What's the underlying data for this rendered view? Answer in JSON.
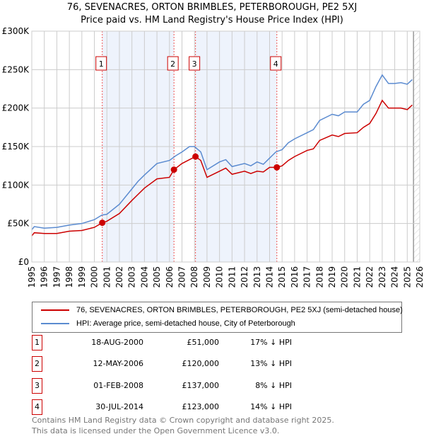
{
  "chart_data": {
    "type": "line",
    "title": "76, SEVENACRES, ORTON BRIMBLES, PETERBOROUGH, PE2 5XJ",
    "subtitle": "Price paid vs. HM Land Registry's House Price Index (HPI)",
    "xlim": [
      1995,
      2026
    ],
    "ylim": [
      0,
      300000
    ],
    "yticks": [
      {
        "v": 0,
        "label": "£0"
      },
      {
        "v": 50000,
        "label": "£50K"
      },
      {
        "v": 100000,
        "label": "£100K"
      },
      {
        "v": 150000,
        "label": "£150K"
      },
      {
        "v": 200000,
        "label": "£200K"
      },
      {
        "v": 250000,
        "label": "£250K"
      },
      {
        "v": 300000,
        "label": "£300K"
      }
    ],
    "xticks": [
      "1995",
      "1996",
      "1997",
      "1998",
      "1999",
      "2000",
      "2001",
      "2002",
      "2003",
      "2004",
      "2005",
      "2006",
      "2007",
      "2008",
      "2009",
      "2010",
      "2011",
      "2012",
      "2013",
      "2014",
      "2015",
      "2016",
      "2017",
      "2018",
      "2019",
      "2020",
      "2021",
      "2022",
      "2023",
      "2024",
      "2025",
      "2026"
    ],
    "series": [
      {
        "name": "76, SEVENACRES, ORTON BRIMBLES, PETERBOROUGH, PE2 5XJ (semi-detached house)",
        "color": "#cc0000",
        "x": [
          1995,
          1995.2,
          1996,
          1997,
          1998,
          1999,
          2000,
          2000.63,
          2001,
          2002,
          2003,
          2003.5,
          2004,
          2005,
          2006,
          2006.36,
          2007,
          2007.6,
          2008.08,
          2008.5,
          2009,
          2010,
          2010.5,
          2011,
          2012,
          2012.5,
          2013,
          2013.5,
          2014,
          2014.58,
          2015,
          2015.5,
          2016,
          2017,
          2017.5,
          2018,
          2019,
          2019.5,
          2020,
          2021,
          2021.5,
          2022,
          2022.5,
          2023,
          2023.5,
          2024,
          2024.5,
          2025,
          2025.4
        ],
        "y": [
          34000,
          38000,
          37000,
          37000,
          40000,
          41000,
          45000,
          51000,
          53000,
          63000,
          80000,
          88000,
          96000,
          108000,
          110000,
          120000,
          128000,
          133000,
          137000,
          132000,
          110000,
          118000,
          122000,
          114000,
          118000,
          115000,
          118000,
          117000,
          123000,
          123000,
          125000,
          132000,
          137000,
          145000,
          147000,
          158000,
          165000,
          163000,
          167000,
          168000,
          175000,
          180000,
          193000,
          210000,
          200000,
          200000,
          200000,
          198000,
          204000
        ]
      },
      {
        "name": "HPI: Average price, semi-detached house, City of Peterborough",
        "color": "#5b8bd0",
        "x": [
          1995,
          1995.2,
          1996,
          1997,
          1998,
          1999,
          2000,
          2000.6,
          2001,
          2002,
          2003,
          2003.5,
          2004,
          2005,
          2006,
          2006.5,
          2007,
          2007.6,
          2008,
          2008.5,
          2009,
          2010,
          2010.5,
          2011,
          2012,
          2012.5,
          2013,
          2013.5,
          2014,
          2014.5,
          2015,
          2015.5,
          2016,
          2017,
          2017.5,
          2018,
          2019,
          2019.5,
          2020,
          2021,
          2021.5,
          2022,
          2022.5,
          2023,
          2023.5,
          2024,
          2024.5,
          2025,
          2025.4
        ],
        "y": [
          42000,
          46000,
          44000,
          45000,
          48000,
          50000,
          55000,
          61000,
          62000,
          75000,
          95000,
          105000,
          113000,
          128000,
          132000,
          138000,
          143000,
          150000,
          150000,
          143000,
          120000,
          130000,
          133000,
          124000,
          128000,
          125000,
          130000,
          127000,
          135000,
          143000,
          146000,
          155000,
          160000,
          168000,
          172000,
          184000,
          192000,
          190000,
          195000,
          195000,
          205000,
          210000,
          228000,
          243000,
          232000,
          232000,
          233000,
          231000,
          237000
        ]
      }
    ],
    "sales": [
      {
        "n": "1",
        "x": 2000.63,
        "date": "18-AUG-2000",
        "price": "£51,000",
        "value": 51000,
        "hpi": "17% ↓ HPI"
      },
      {
        "n": "2",
        "x": 2006.36,
        "date": "12-MAY-2006",
        "price": "£120,000",
        "value": 120000,
        "hpi": "13% ↓ HPI"
      },
      {
        "n": "3",
        "x": 2008.08,
        "date": "01-FEB-2008",
        "price": "£137,000",
        "value": 137000,
        "hpi": "8% ↓ HPI"
      },
      {
        "n": "4",
        "x": 2014.58,
        "date": "30-JUL-2014",
        "price": "£123,000",
        "value": 123000,
        "hpi": "14% ↓ HPI"
      }
    ],
    "forecast_start": 2025.5,
    "legend_placement": "bottom"
  },
  "footer": [
    "Contains HM Land Registry data © Crown copyright and database right 2025.",
    "This data is licensed under the Open Government Licence v3.0."
  ]
}
